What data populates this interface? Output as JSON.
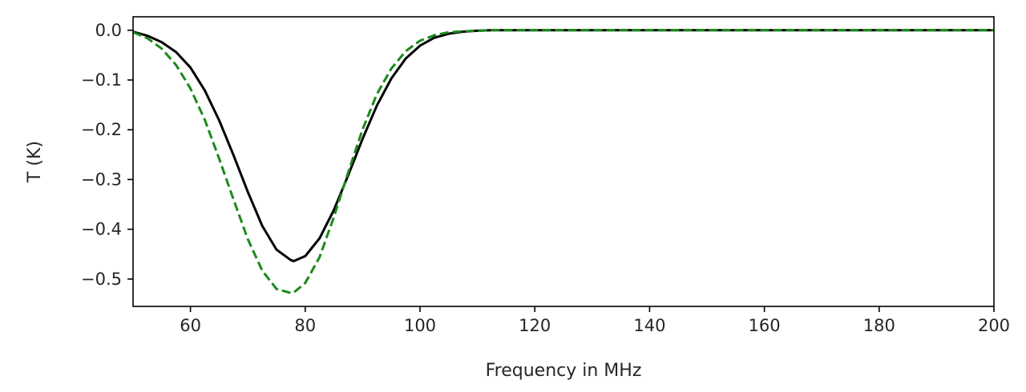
{
  "chart_data": {
    "type": "line",
    "title": "",
    "xlabel": "Frequency in MHz",
    "ylabel": "T (K)",
    "xlim": [
      50,
      200
    ],
    "ylim": [
      -0.555,
      0.027
    ],
    "x_ticks": [
      60,
      80,
      100,
      120,
      140,
      160,
      180,
      200
    ],
    "y_ticks": [
      0.0,
      -0.1,
      -0.2,
      -0.3,
      -0.4,
      -0.5
    ],
    "x_tick_labels": [
      "60",
      "80",
      "100",
      "120",
      "140",
      "160",
      "180",
      "200"
    ],
    "y_tick_labels": [
      "0.0",
      "−0.1",
      "−0.2",
      "−0.3",
      "−0.4",
      "−0.5"
    ],
    "grid": false,
    "legend": "none",
    "series": [
      {
        "style": "solid",
        "color": "#000000",
        "x": [
          50,
          52.5,
          55,
          57.5,
          60,
          62.5,
          65,
          67.5,
          70,
          72.5,
          75,
          77.5,
          78,
          80,
          82.5,
          85,
          87.5,
          90,
          92.5,
          95,
          97.5,
          100,
          102.5,
          105,
          107.5,
          110,
          112.5,
          115,
          120,
          130,
          140,
          150,
          160,
          170,
          180,
          190,
          200
        ],
        "y": [
          -0.003,
          -0.011,
          -0.024,
          -0.044,
          -0.075,
          -0.121,
          -0.181,
          -0.251,
          -0.325,
          -0.393,
          -0.441,
          -0.462,
          -0.464,
          -0.454,
          -0.418,
          -0.361,
          -0.291,
          -0.218,
          -0.151,
          -0.097,
          -0.057,
          -0.031,
          -0.015,
          -0.007,
          -0.003,
          -0.001,
          0.0,
          0.0,
          0.0,
          0.0,
          0.0,
          0.0,
          0.0,
          0.0,
          0.0,
          0.0,
          0.0
        ]
      },
      {
        "style": "dashed",
        "color": "#1a8a1a",
        "x": [
          50,
          52.5,
          55,
          57.5,
          60,
          62.5,
          65,
          67.5,
          70,
          72.5,
          75,
          77.5,
          78,
          80,
          82.5,
          85,
          87.5,
          90,
          92.5,
          95,
          97.5,
          100,
          102.5,
          105,
          107.5,
          110,
          112.5,
          115,
          120,
          130,
          140,
          150,
          160,
          170,
          180,
          190,
          200
        ],
        "y": [
          -0.004,
          -0.016,
          -0.037,
          -0.07,
          -0.117,
          -0.18,
          -0.258,
          -0.34,
          -0.42,
          -0.483,
          -0.52,
          -0.528,
          -0.527,
          -0.508,
          -0.456,
          -0.375,
          -0.285,
          -0.199,
          -0.128,
          -0.077,
          -0.042,
          -0.021,
          -0.01,
          -0.004,
          -0.002,
          -0.001,
          0.0,
          0.0,
          0.0,
          0.0,
          0.0,
          0.0,
          0.0,
          0.0,
          0.0,
          0.0,
          0.0
        ]
      }
    ]
  }
}
